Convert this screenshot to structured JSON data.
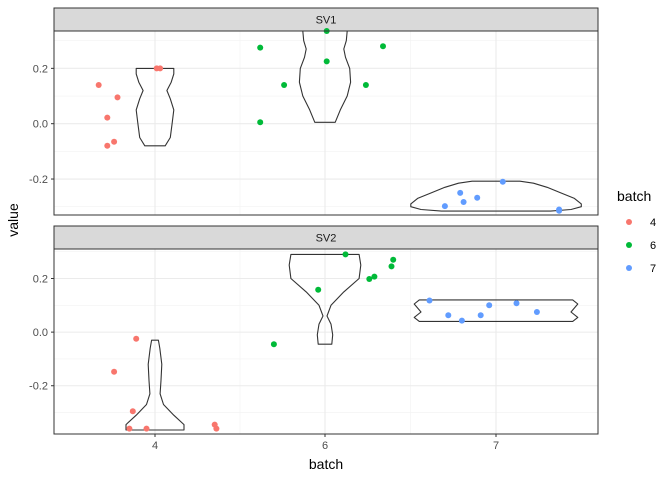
{
  "chart_data": {
    "type": "violin",
    "xlabel": "batch",
    "ylabel": "value",
    "x_categories": [
      "4",
      "6",
      "7"
    ],
    "legend": {
      "title": "batch",
      "placement": "right",
      "entries": [
        {
          "label": "4",
          "color": "#F8766D"
        },
        {
          "label": "6",
          "color": "#00BA38"
        },
        {
          "label": "7",
          "color": "#619CFF"
        }
      ]
    },
    "grid": true,
    "panels": [
      {
        "strip": "SV1",
        "ylim": [
          -0.33,
          0.335
        ],
        "yticks": [
          0.2,
          0.0,
          -0.2
        ],
        "ytick_labels": [
          "0.2",
          "0.0",
          "-0.2"
        ],
        "points": [
          {
            "batch": "4",
            "jitter": -0.33,
            "y": 0.14
          },
          {
            "batch": "4",
            "jitter": -0.22,
            "y": 0.095
          },
          {
            "batch": "4",
            "jitter": -0.28,
            "y": 0.022
          },
          {
            "batch": "4",
            "jitter": -0.24,
            "y": -0.065
          },
          {
            "batch": "4",
            "jitter": -0.28,
            "y": -0.08
          },
          {
            "batch": "4",
            "jitter": 0.01,
            "y": 0.2
          },
          {
            "batch": "4",
            "jitter": 0.03,
            "y": 0.2
          },
          {
            "batch": "6",
            "jitter": -0.38,
            "y": 0.275
          },
          {
            "batch": "6",
            "jitter": -0.24,
            "y": 0.14
          },
          {
            "batch": "6",
            "jitter": -0.38,
            "y": 0.005
          },
          {
            "batch": "6",
            "jitter": 0.01,
            "y": 0.225
          },
          {
            "batch": "6",
            "jitter": 0.01,
            "y": 0.335
          },
          {
            "batch": "6",
            "jitter": 0.24,
            "y": 0.14
          },
          {
            "batch": "6",
            "jitter": 0.34,
            "y": 0.28
          },
          {
            "batch": "7",
            "jitter": -0.3,
            "y": -0.298
          },
          {
            "batch": "7",
            "jitter": -0.21,
            "y": -0.25
          },
          {
            "batch": "7",
            "jitter": -0.19,
            "y": -0.283
          },
          {
            "batch": "7",
            "jitter": -0.11,
            "y": -0.268
          },
          {
            "batch": "7",
            "jitter": 0.04,
            "y": -0.21
          },
          {
            "batch": "7",
            "jitter": 0.37,
            "y": -0.31
          },
          {
            "batch": "7",
            "jitter": 0.37,
            "y": -0.315
          }
        ],
        "violins": [
          {
            "batch": "4",
            "profile": [
              [
                -0.08,
                0.06
              ],
              [
                -0.05,
                0.09
              ],
              [
                0.0,
                0.1
              ],
              [
                0.05,
                0.11
              ],
              [
                0.09,
                0.09
              ],
              [
                0.12,
                0.07
              ],
              [
                0.15,
                0.095
              ],
              [
                0.18,
                0.11
              ],
              [
                0.2,
                0.11
              ]
            ]
          },
          {
            "batch": "6",
            "profile": [
              [
                0.005,
                0.06
              ],
              [
                0.05,
                0.09
              ],
              [
                0.1,
                0.13
              ],
              [
                0.15,
                0.15
              ],
              [
                0.2,
                0.145
              ],
              [
                0.24,
                0.12
              ],
              [
                0.27,
                0.11
              ],
              [
                0.3,
                0.125
              ],
              [
                0.335,
                0.13
              ]
            ]
          },
          {
            "batch": "7",
            "profile": [
              [
                -0.316,
                0.32
              ],
              [
                -0.31,
                0.44
              ],
              [
                -0.3,
                0.5
              ],
              [
                -0.29,
                0.5
              ],
              [
                -0.27,
                0.46
              ],
              [
                -0.25,
                0.38
              ],
              [
                -0.23,
                0.3
              ],
              [
                -0.215,
                0.22
              ],
              [
                -0.208,
                0.14
              ]
            ]
          }
        ]
      },
      {
        "strip": "SV2",
        "ylim": [
          -0.38,
          0.31
        ],
        "yticks": [
          0.2,
          0.0,
          -0.2
        ],
        "ytick_labels": [
          "0.2",
          "0.0",
          "-0.2"
        ],
        "points": [
          {
            "batch": "4",
            "jitter": -0.11,
            "y": -0.025
          },
          {
            "batch": "4",
            "jitter": -0.24,
            "y": -0.148
          },
          {
            "batch": "4",
            "jitter": -0.13,
            "y": -0.295
          },
          {
            "batch": "4",
            "jitter": -0.15,
            "y": -0.36
          },
          {
            "batch": "4",
            "jitter": -0.05,
            "y": -0.36
          },
          {
            "batch": "4",
            "jitter": 0.35,
            "y": -0.345
          },
          {
            "batch": "4",
            "jitter": 0.36,
            "y": -0.36
          },
          {
            "batch": "6",
            "jitter": -0.3,
            "y": -0.045
          },
          {
            "batch": "6",
            "jitter": -0.04,
            "y": 0.158
          },
          {
            "batch": "6",
            "jitter": 0.12,
            "y": 0.29
          },
          {
            "batch": "6",
            "jitter": 0.26,
            "y": 0.198
          },
          {
            "batch": "6",
            "jitter": 0.29,
            "y": 0.207
          },
          {
            "batch": "6",
            "jitter": 0.39,
            "y": 0.245
          },
          {
            "batch": "6",
            "jitter": 0.4,
            "y": 0.27
          },
          {
            "batch": "7",
            "jitter": -0.39,
            "y": 0.118
          },
          {
            "batch": "7",
            "jitter": -0.28,
            "y": 0.063
          },
          {
            "batch": "7",
            "jitter": -0.2,
            "y": 0.043
          },
          {
            "batch": "7",
            "jitter": -0.09,
            "y": 0.063
          },
          {
            "batch": "7",
            "jitter": -0.04,
            "y": 0.1
          },
          {
            "batch": "7",
            "jitter": 0.12,
            "y": 0.108
          },
          {
            "batch": "7",
            "jitter": 0.24,
            "y": 0.075
          }
        ],
        "violins": [
          {
            "batch": "4",
            "profile": [
              [
                -0.365,
                0.17
              ],
              [
                -0.345,
                0.17
              ],
              [
                -0.31,
                0.11
              ],
              [
                -0.27,
                0.05
              ],
              [
                -0.23,
                0.03
              ],
              [
                -0.18,
                0.035
              ],
              [
                -0.12,
                0.04
              ],
              [
                -0.06,
                0.028
              ],
              [
                -0.03,
                0.02
              ]
            ]
          },
          {
            "batch": "6",
            "profile": [
              [
                -0.045,
                0.04
              ],
              [
                -0.01,
                0.045
              ],
              [
                0.03,
                0.035
              ],
              [
                0.06,
                0.012
              ],
              [
                0.1,
                0.035
              ],
              [
                0.15,
                0.11
              ],
              [
                0.2,
                0.2
              ],
              [
                0.25,
                0.21
              ],
              [
                0.29,
                0.2
              ]
            ]
          },
          {
            "batch": "7",
            "profile": [
              [
                0.04,
                0.45
              ],
              [
                0.055,
                0.48
              ],
              [
                0.075,
                0.44
              ],
              [
                0.09,
                0.46
              ],
              [
                0.105,
                0.48
              ],
              [
                0.12,
                0.45
              ]
            ]
          }
        ]
      }
    ]
  }
}
